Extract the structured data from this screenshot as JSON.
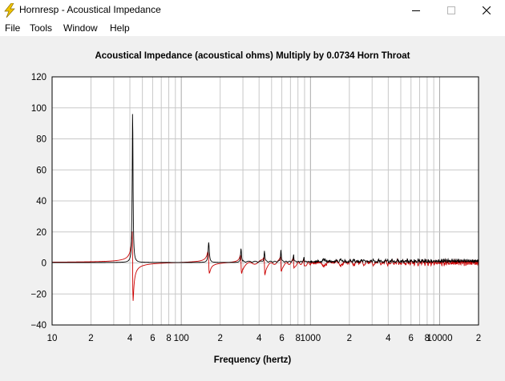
{
  "window": {
    "title": "Hornresp - Acoustical Impedance",
    "icon": "lightning-icon",
    "controls": [
      "minimize-icon",
      "maximize-icon",
      "close-icon"
    ]
  },
  "menu": {
    "items": [
      "File",
      "Tools",
      "Window",
      "Help"
    ]
  },
  "colors": {
    "plot_background": "#ffffff",
    "client_background": "#f0f0f0",
    "grid": "#c8c8c8",
    "series_black": "#000000",
    "series_red": "#cc0000",
    "icon_yellow": "#f0c400"
  },
  "chart_data": {
    "type": "line",
    "title": "Acoustical Impedance (acoustical ohms)   Multiply by 0.0734   Horn Throat",
    "xlabel": "Frequency (hertz)",
    "ylabel": "",
    "xscale": "log",
    "xlim": [
      10,
      20000
    ],
    "ylim": [
      -40,
      120
    ],
    "grid": true,
    "yticks": [
      120,
      100,
      80,
      60,
      40,
      20,
      0,
      -20,
      -40
    ],
    "ytick_labels": [
      "120",
      "100",
      "80",
      "60",
      "40",
      "20",
      "0",
      "−20",
      "−40"
    ],
    "xticks": [
      {
        "value": 10,
        "label": "10"
      },
      {
        "value": 20,
        "label": "2"
      },
      {
        "value": 40,
        "label": "4"
      },
      {
        "value": 60,
        "label": "6"
      },
      {
        "value": 80,
        "label": "8"
      },
      {
        "value": 100,
        "label": "100"
      },
      {
        "value": 200,
        "label": "2"
      },
      {
        "value": 400,
        "label": "4"
      },
      {
        "value": 600,
        "label": "6"
      },
      {
        "value": 800,
        "label": "8"
      },
      {
        "value": 1000,
        "label": "1000"
      },
      {
        "value": 2000,
        "label": "2"
      },
      {
        "value": 4000,
        "label": "4"
      },
      {
        "value": 6000,
        "label": "6"
      },
      {
        "value": 8000,
        "label": "8"
      },
      {
        "value": 10000,
        "label": "10000"
      },
      {
        "value": 20000,
        "label": "2"
      }
    ],
    "resonances": [
      {
        "f": 42,
        "peak_black": 100,
        "peak_red": 20,
        "min_red": -25,
        "q": 60
      },
      {
        "f": 163,
        "peak_black": 13,
        "peak_red": 7,
        "min_red": -7,
        "q": 40
      },
      {
        "f": 290,
        "peak_black": 9,
        "peak_red": 5,
        "min_red": -7,
        "q": 50
      },
      {
        "f": 440,
        "peak_black": 7,
        "peak_red": 4,
        "min_red": -7,
        "q": 60
      },
      {
        "f": 590,
        "peak_black": 8,
        "peak_red": 4,
        "min_red": -5,
        "q": 70
      },
      {
        "f": 740,
        "peak_black": 5,
        "peak_red": 3,
        "min_red": -3,
        "q": 80
      },
      {
        "f": 890,
        "peak_black": 3,
        "peak_red": 2,
        "min_red": -2,
        "q": 90
      }
    ],
    "series": [
      {
        "name": "",
        "color": "#000000",
        "kind": "resistance"
      },
      {
        "name": "",
        "color": "#cc0000",
        "kind": "reactance"
      }
    ]
  }
}
